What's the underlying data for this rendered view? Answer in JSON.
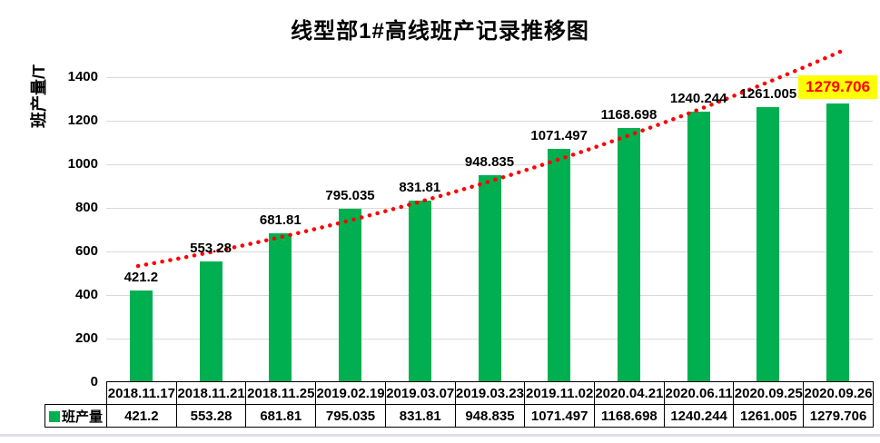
{
  "title": "线型部1#高线班产记录推移图",
  "y_axis_title": "班产量/T",
  "legend": {
    "label": "班产量",
    "swatch_color": "#00B050"
  },
  "chart_data": {
    "type": "bar",
    "title": "线型部1#高线班产记录推移图",
    "xlabel": "",
    "ylabel": "班产量/T",
    "ylim": [
      0,
      1500
    ],
    "yticks": [
      0,
      200,
      400,
      600,
      800,
      1000,
      1200,
      1400
    ],
    "grid": "horizontal",
    "legend_position": "bottom-table-left",
    "categories": [
      "2018.11.17",
      "2018.11.21",
      "2018.11.25",
      "2019.02.19",
      "2019.03.07",
      "2019.03.23",
      "2019.11.02",
      "2020.04.21",
      "2020.06.11",
      "2020.09.25",
      "2020.09.26"
    ],
    "series": [
      {
        "name": "班产量",
        "values": [
          421.2,
          553.28,
          681.81,
          795.035,
          831.81,
          948.835,
          1071.497,
          1168.698,
          1240.244,
          1261.005,
          1279.706
        ],
        "labels": [
          "421.2",
          "553.28",
          "681.81",
          "795.035",
          "831.81",
          "948.835",
          "1071.497",
          "1168.698",
          "1240.244",
          "1261.005",
          "1279.706"
        ],
        "color": "#00B050"
      }
    ],
    "trendline": {
      "style": "dotted",
      "color": "#FF0000"
    },
    "highlight": {
      "index": 10,
      "label": "1279.706",
      "background": "#FFFF00",
      "text_color": "#FF0000"
    }
  },
  "colors": {
    "bar": "#00B050",
    "gridline": "#d9d9d9",
    "trendline": "#FF0000",
    "highlight_bg": "#FFFF00",
    "highlight_text": "#FF0000",
    "table_border": "#000000"
  }
}
